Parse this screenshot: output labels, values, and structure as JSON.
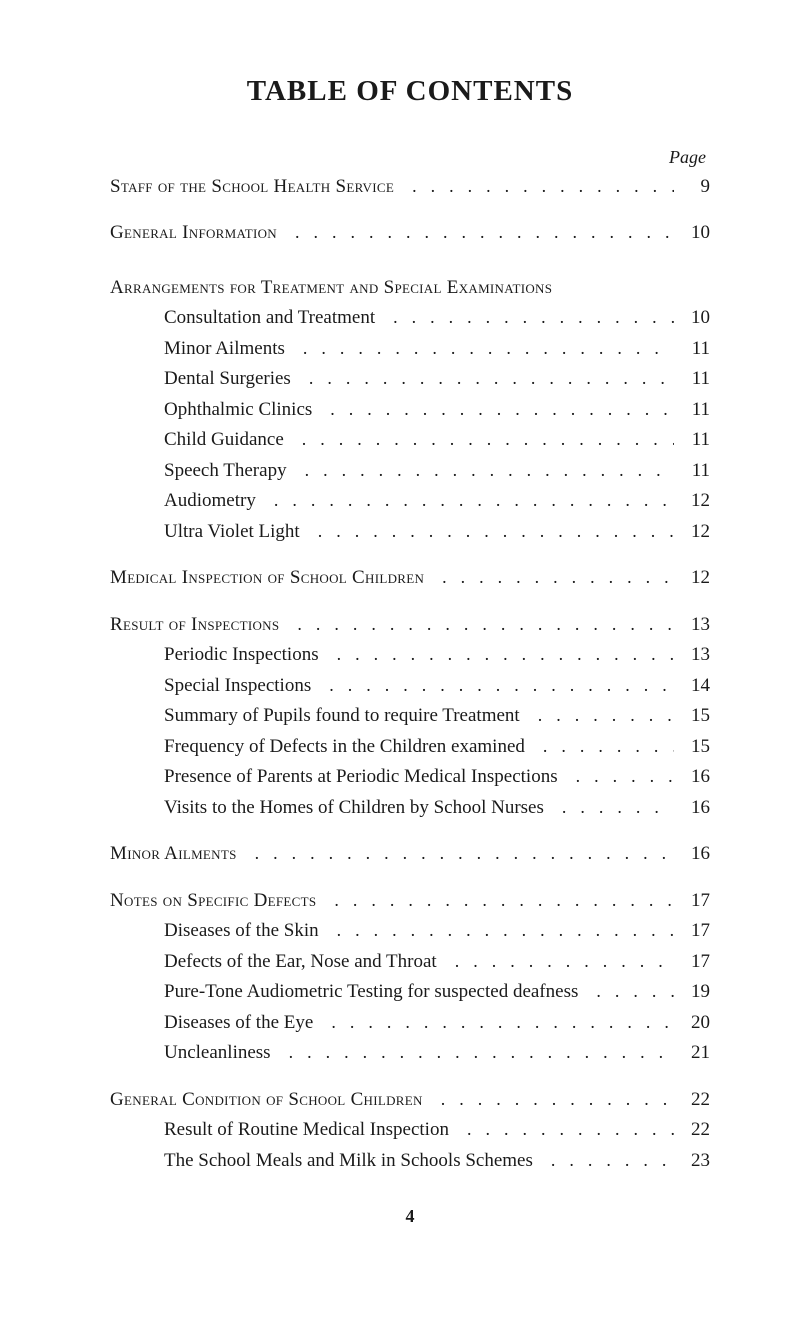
{
  "title": "TABLE OF CONTENTS",
  "page_label": "Page",
  "page_number": "4",
  "leader_glyph": "...",
  "colors": {
    "text": "#1a1a1a",
    "background": "#ffffff"
  },
  "typography": {
    "title_fontsize_pt": 22,
    "body_fontsize_pt": 14,
    "font_family": "Times New Roman, serif"
  },
  "sections": [
    {
      "type": "section",
      "label": "Staff of the School Health Service",
      "page": "9"
    },
    {
      "type": "spacer",
      "size": "md"
    },
    {
      "type": "section",
      "label": "General Information",
      "page": "10"
    },
    {
      "type": "spacer",
      "size": "lg"
    },
    {
      "type": "section",
      "label": "Arrangements for Treatment and Special Examinations",
      "page": ""
    },
    {
      "type": "sub",
      "label": "Consultation and Treatment",
      "page": "10"
    },
    {
      "type": "sub",
      "label": "Minor Ailments",
      "page": "11"
    },
    {
      "type": "sub",
      "label": "Dental Surgeries",
      "page": "11"
    },
    {
      "type": "sub",
      "label": "Ophthalmic Clinics",
      "page": "11"
    },
    {
      "type": "sub",
      "label": "Child Guidance",
      "page": "11"
    },
    {
      "type": "sub",
      "label": "Speech Therapy",
      "page": "11"
    },
    {
      "type": "sub",
      "label": "Audiometry",
      "page": "12"
    },
    {
      "type": "sub",
      "label": "Ultra Violet Light",
      "page": "12"
    },
    {
      "type": "spacer",
      "size": "md"
    },
    {
      "type": "section",
      "label": "Medical Inspection of School Children",
      "page": "12"
    },
    {
      "type": "spacer",
      "size": "md"
    },
    {
      "type": "section",
      "label": "Result of Inspections",
      "page": "13"
    },
    {
      "type": "sub",
      "label": "Periodic Inspections",
      "page": "13"
    },
    {
      "type": "sub",
      "label": "Special Inspections",
      "page": "14"
    },
    {
      "type": "sub",
      "label": "Summary of Pupils found to require Treatment",
      "page": "15"
    },
    {
      "type": "sub",
      "label": "Frequency of Defects in the Children examined",
      "page": "15"
    },
    {
      "type": "sub",
      "label": "Presence of Parents at Periodic Medical Inspections",
      "page": "16"
    },
    {
      "type": "sub",
      "label": "Visits to the Homes of Children by School Nurses",
      "page": "16"
    },
    {
      "type": "spacer",
      "size": "md"
    },
    {
      "type": "section",
      "label": "Minor Ailments",
      "page": "16"
    },
    {
      "type": "spacer",
      "size": "md"
    },
    {
      "type": "section",
      "label": "Notes on Specific Defects",
      "page": "17"
    },
    {
      "type": "sub",
      "label": "Diseases of the Skin",
      "page": "17"
    },
    {
      "type": "sub",
      "label": "Defects of the Ear, Nose and Throat",
      "page": "17"
    },
    {
      "type": "sub",
      "label": "Pure-Tone Audiometric Testing for suspected deafness",
      "page": "19"
    },
    {
      "type": "sub",
      "label": "Diseases of the Eye",
      "page": "20"
    },
    {
      "type": "sub",
      "label": "Uncleanliness",
      "page": "21"
    },
    {
      "type": "spacer",
      "size": "md"
    },
    {
      "type": "section",
      "label": "General Condition of School Children",
      "page": "22"
    },
    {
      "type": "sub",
      "label": "Result of Routine Medical Inspection",
      "page": "22"
    },
    {
      "type": "sub",
      "label": "The School Meals and Milk in Schools Schemes",
      "page": "23"
    }
  ]
}
